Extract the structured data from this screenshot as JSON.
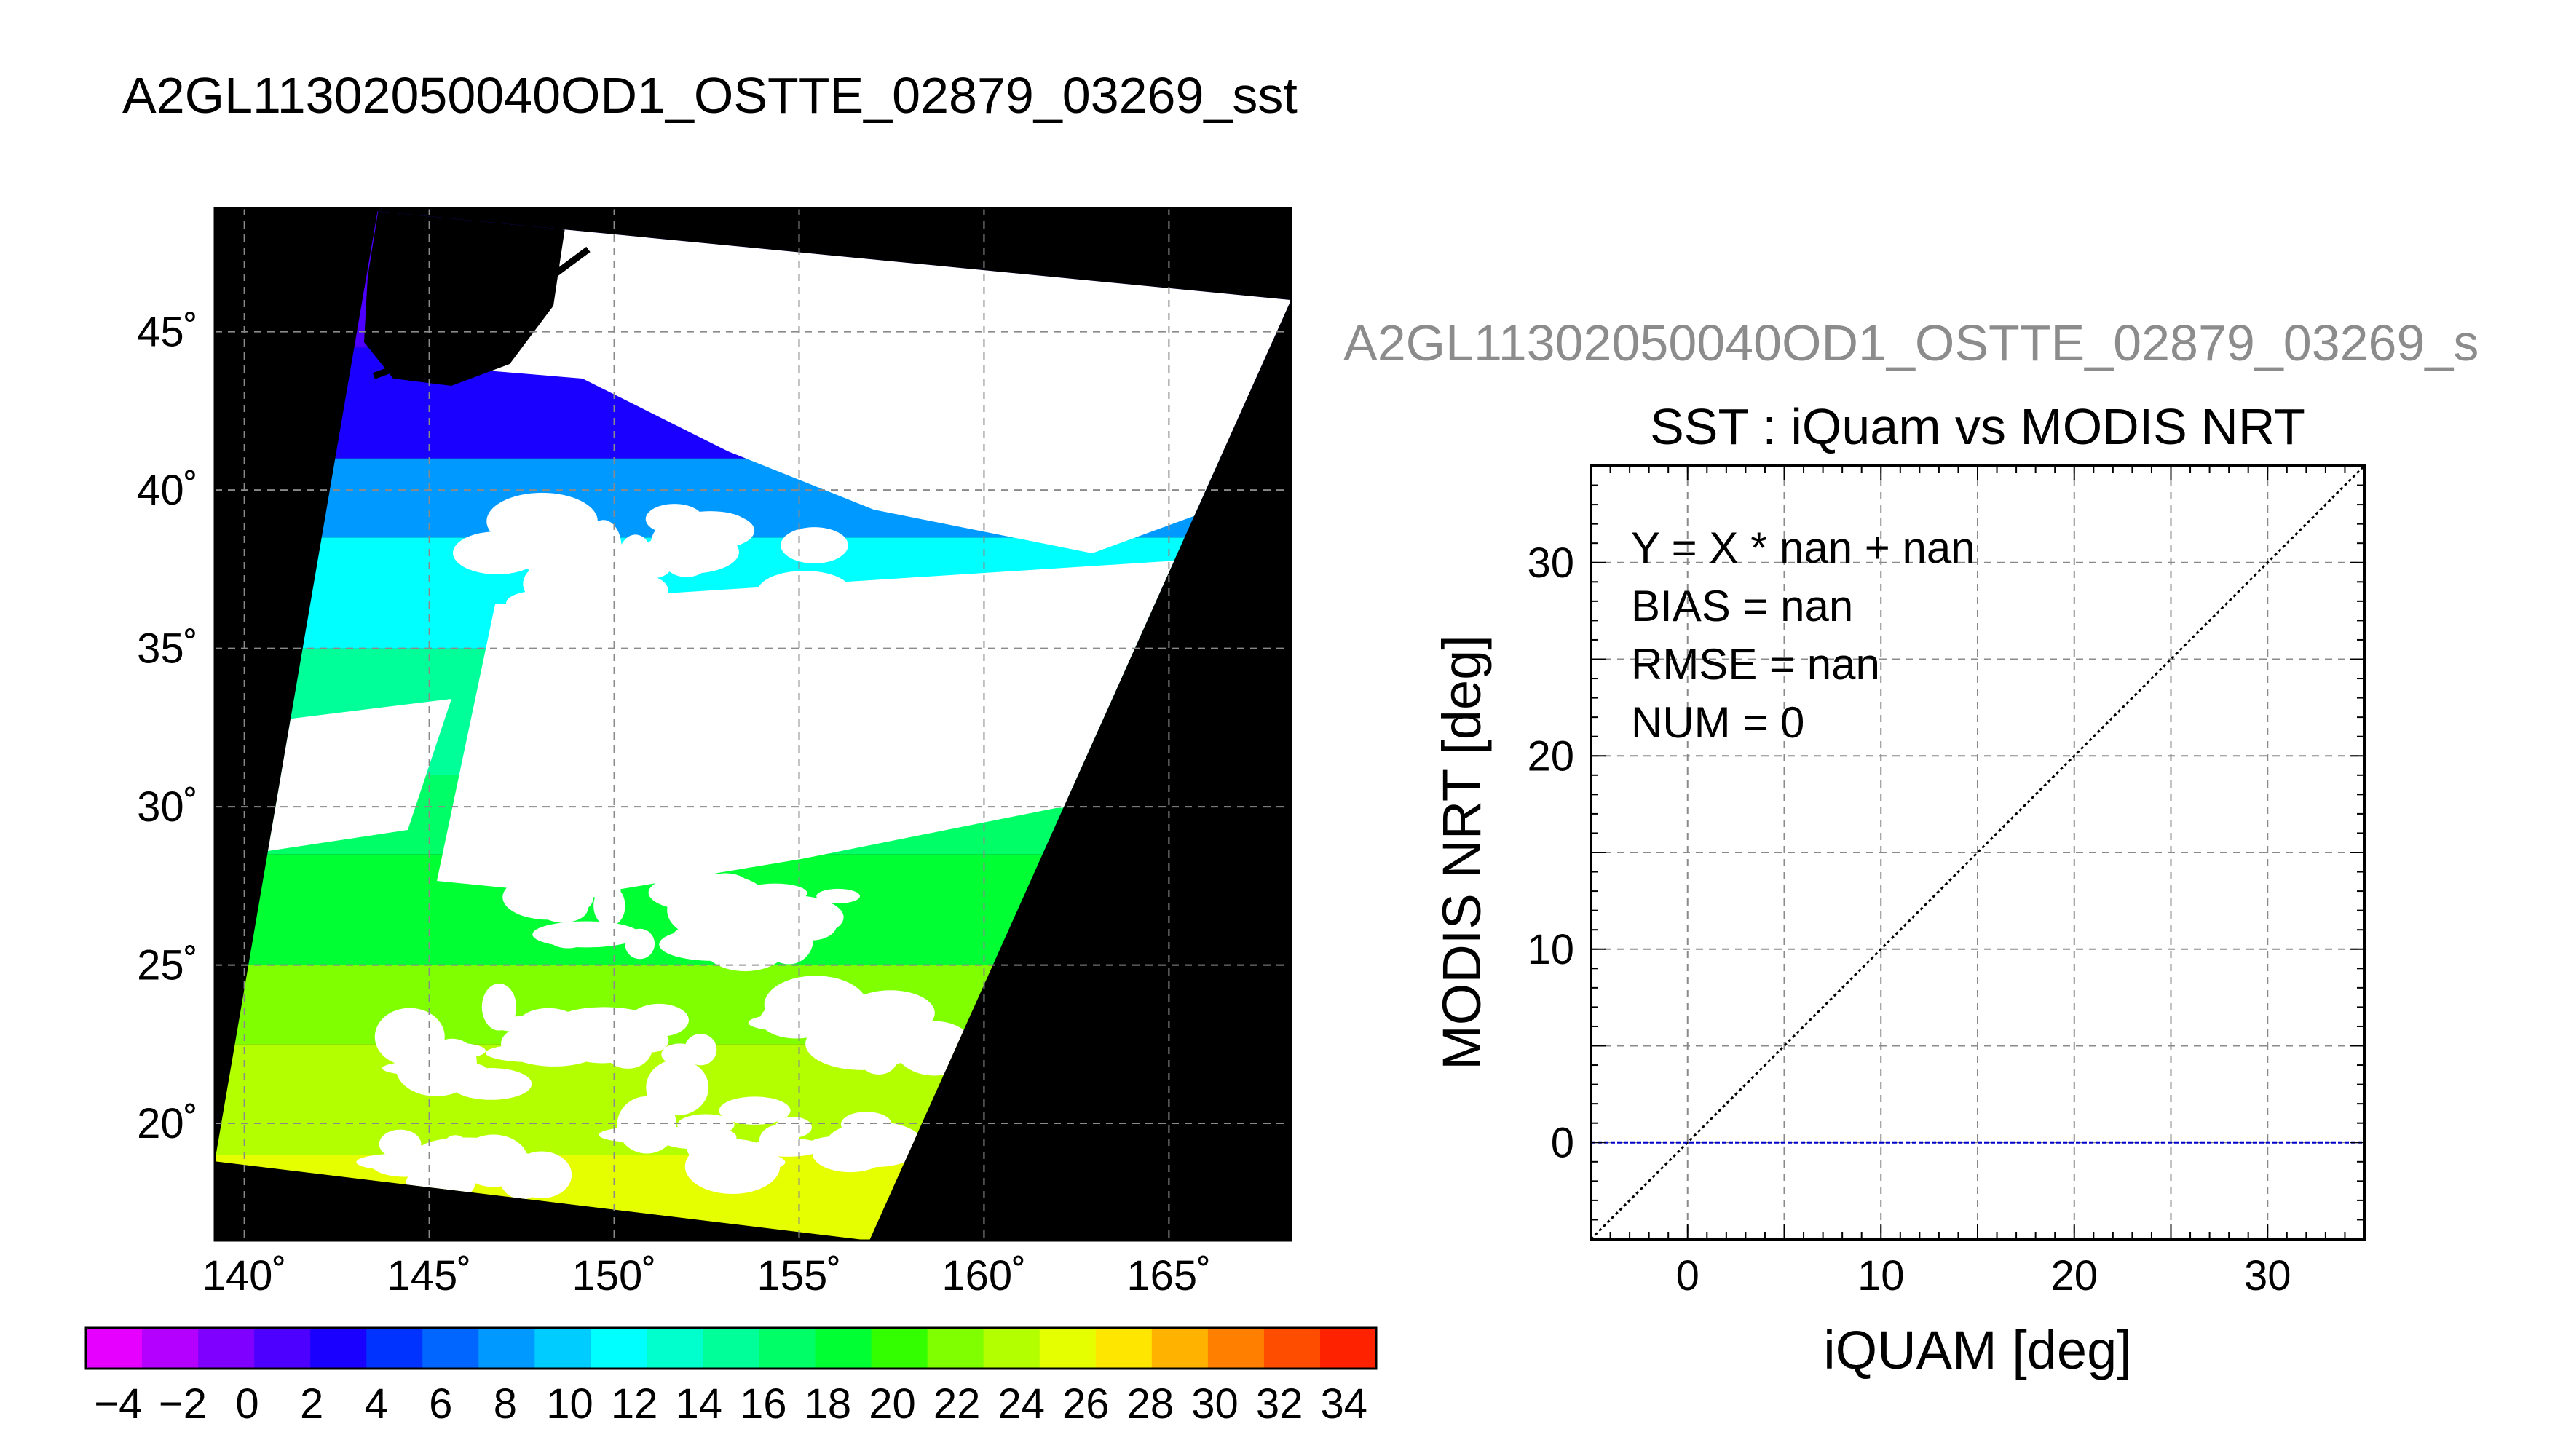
{
  "figure_title": "A2GL11302050040OD1_OSTTE_02879_03269_sst",
  "chart_data": [
    {
      "type": "heatmap",
      "title": "A2GL11302050040OD1_OSTTE_02879_03269_sst",
      "xlabel": "",
      "ylabel": "",
      "xlim": [
        139.2,
        168.3
      ],
      "ylim": [
        16.3,
        48.9
      ],
      "x_ticks": [
        140,
        145,
        150,
        155,
        160,
        165
      ],
      "y_ticks": [
        20,
        25,
        30,
        35,
        40,
        45
      ],
      "x_tick_labels": [
        "140˚",
        "145˚",
        "150˚",
        "155˚",
        "160˚",
        "165˚"
      ],
      "y_tick_labels": [
        "20˚",
        "25˚",
        "30˚",
        "35˚",
        "40˚",
        "45˚"
      ],
      "grid": true,
      "swath_corners": [
        [
          143.6,
          48.8
        ],
        [
          168.3,
          46.0
        ],
        [
          156.9,
          16.3
        ],
        [
          139.2,
          18.8
        ]
      ],
      "coastline": [
        [
          143.5,
          43.6
        ],
        [
          144.2,
          43.9
        ],
        [
          145.1,
          44.5
        ],
        [
          146.3,
          45.4
        ],
        [
          147.8,
          46.3
        ],
        [
          149.3,
          47.6
        ]
      ],
      "sst_bands": [
        {
          "lat_from": 16.3,
          "lat_to": 19.0,
          "value": 29
        },
        {
          "lat_from": 19.0,
          "lat_to": 22.5,
          "value": 27
        },
        {
          "lat_from": 22.5,
          "lat_to": 25.0,
          "value": 25
        },
        {
          "lat_from": 25.0,
          "lat_to": 28.5,
          "value": 21
        },
        {
          "lat_from": 28.5,
          "lat_to": 31.0,
          "value": 19
        },
        {
          "lat_from": 31.0,
          "lat_to": 35.0,
          "value": 17
        },
        {
          "lat_from": 35.0,
          "lat_to": 38.5,
          "value": 13
        },
        {
          "lat_from": 38.5,
          "lat_to": 41.0,
          "value": 9
        },
        {
          "lat_from": 41.0,
          "lat_to": 44.5,
          "value": 3
        },
        {
          "lat_from": 44.5,
          "lat_to": 48.9,
          "value": 1
        }
      ],
      "colorbar": {
        "min": -5,
        "max": 35,
        "step": 2,
        "tick_labels": [
          "−4",
          "−2",
          "0",
          "2",
          "4",
          "6",
          "8",
          "10",
          "12",
          "14",
          "16",
          "18",
          "20",
          "22",
          "24",
          "26",
          "28",
          "30",
          "32",
          "34"
        ],
        "colors": [
          "#e600ff",
          "#b300ff",
          "#8000ff",
          "#4d00ff",
          "#1a00ff",
          "#0033ff",
          "#0066ff",
          "#0099ff",
          "#00ccff",
          "#00ffff",
          "#00ffcc",
          "#00ff99",
          "#00ff66",
          "#00ff33",
          "#33ff00",
          "#80ff00",
          "#b3ff00",
          "#e6ff00",
          "#ffe600",
          "#ffb300",
          "#ff8000",
          "#ff4d00",
          "#ff2200"
        ]
      },
      "background_color": "#000000",
      "cloud_color": "#ffffff"
    },
    {
      "type": "scatter",
      "title": "SST : iQuam vs MODIS NRT",
      "subtitle": "A2GL11302050040OD1_OSTTE_02879_03269_s",
      "xlabel": "iQUAM [deg]",
      "ylabel": "MODIS NRT [deg]",
      "xlim": [
        -5,
        35
      ],
      "ylim": [
        -5,
        35
      ],
      "x_ticks": [
        0,
        10,
        20,
        30
      ],
      "y_ticks": [
        0,
        10,
        20,
        30
      ],
      "grid": true,
      "points": [],
      "reference_lines": [
        {
          "kind": "y=x",
          "style": "dotted",
          "color": "#000000"
        },
        {
          "kind": "y=0",
          "style": "dashed",
          "color": "#0000cc"
        }
      ],
      "stats": [
        "Y = X * nan + nan",
        "BIAS = nan",
        "RMSE = nan",
        "NUM = 0"
      ]
    }
  ]
}
